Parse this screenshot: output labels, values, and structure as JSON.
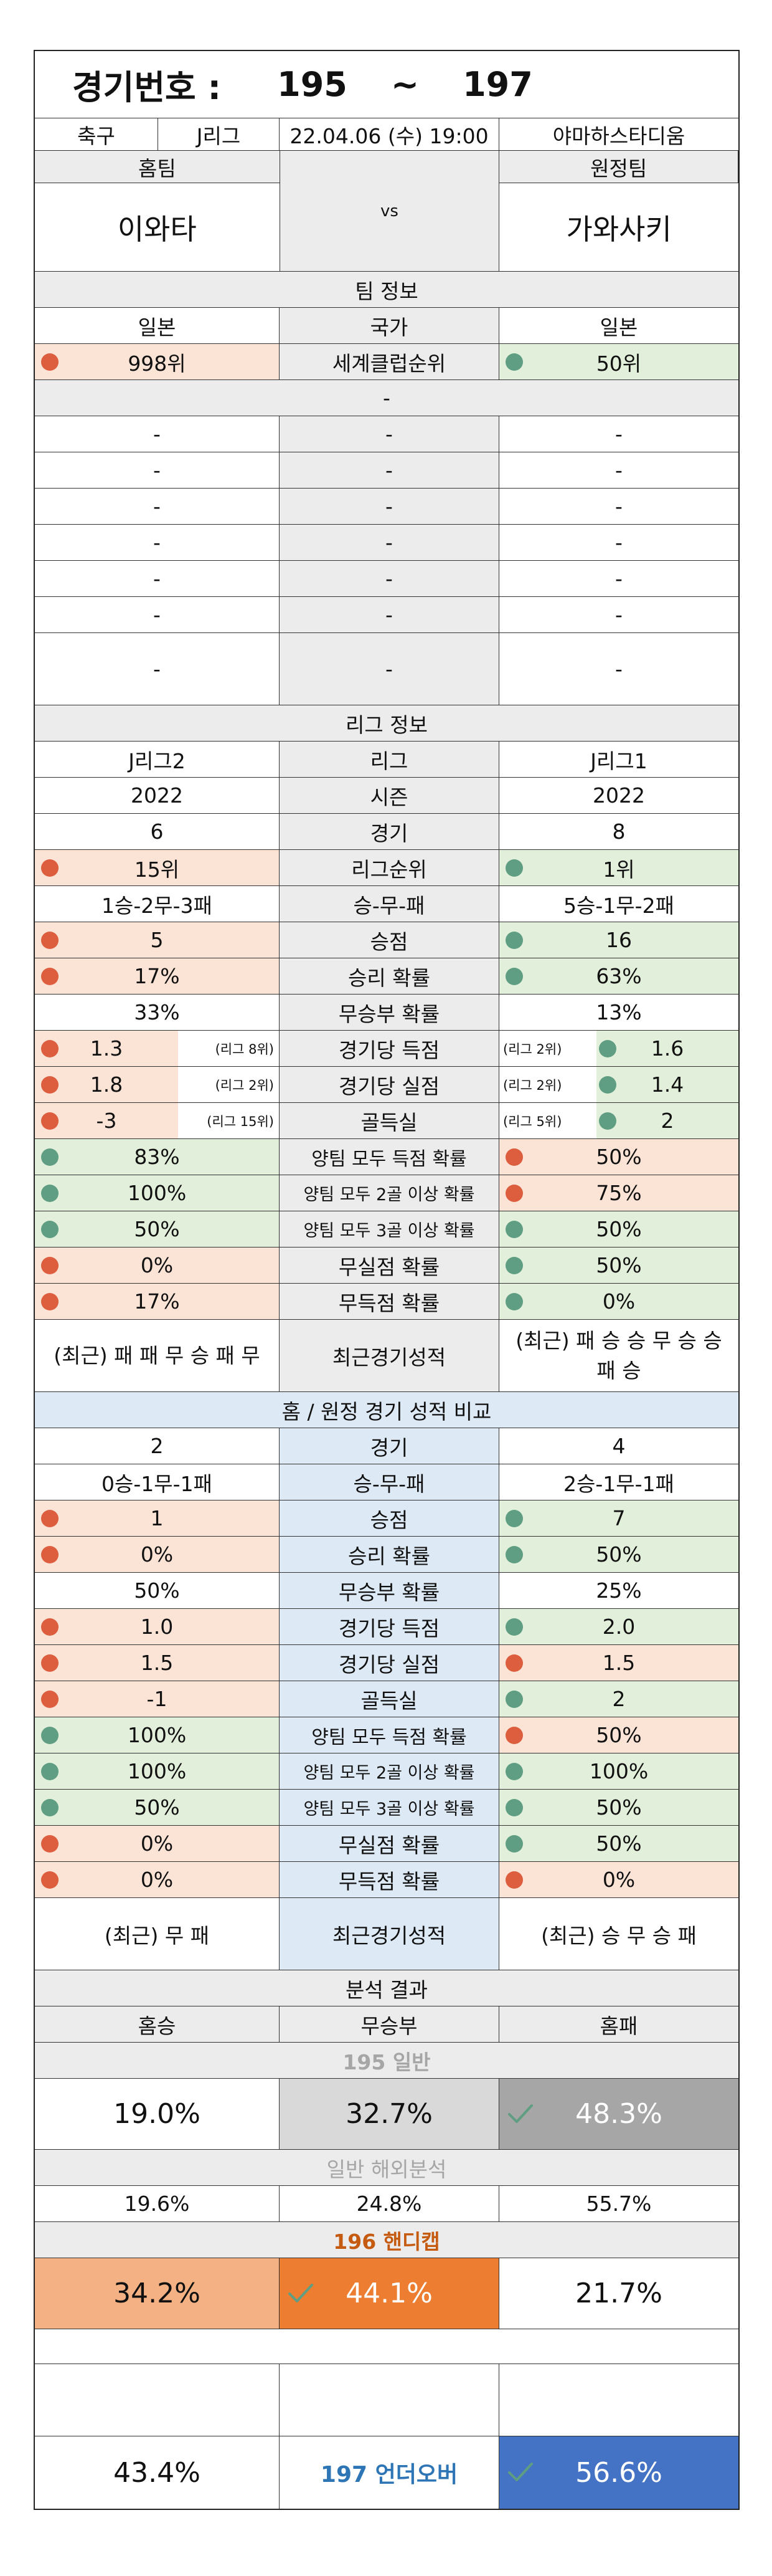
{
  "header": {
    "label": "경기번호 :",
    "from": "195",
    "tilde": "~",
    "to": "197"
  },
  "match": {
    "sport": "축구",
    "league": "J리그",
    "datetime": "22.04.06 (수) 19:00",
    "venue": "야마하스타디움"
  },
  "teams": {
    "home_label": "홈팀",
    "away_label": "원정팀",
    "home": "이와타",
    "away": "가와사키",
    "vs": "vs"
  },
  "team_info": {
    "title": "팀 정보",
    "country": {
      "home": "일본",
      "label": "국가",
      "away": "일본"
    },
    "world_rank": {
      "home": "998위",
      "label": "세계클럽순위",
      "away": "50위"
    },
    "sub": "-",
    "rows": [
      [
        "-",
        "-",
        "-"
      ],
      [
        "-",
        "-",
        "-"
      ],
      [
        "-",
        "-",
        "-"
      ],
      [
        "-",
        "-",
        "-"
      ],
      [
        "-",
        "-",
        "-"
      ],
      [
        "-",
        "-",
        "-"
      ],
      [
        "-",
        "-",
        "-"
      ]
    ]
  },
  "league_info": {
    "title": "리그 정보",
    "league": {
      "home": "J리그2",
      "label": "리그",
      "away": "J리그1"
    },
    "season": {
      "home": "2022",
      "label": "시즌",
      "away": "2022"
    },
    "games": {
      "home": "6",
      "label": "경기",
      "away": "8"
    },
    "rank": {
      "home": "15위",
      "label": "리그순위",
      "away": "1위"
    },
    "record": {
      "home": "1승-2무-3패",
      "label": "승-무-패",
      "away": "5승-1무-2패"
    },
    "points": {
      "home": "5",
      "label": "승점",
      "away": "16"
    },
    "win_prob": {
      "home": "17%",
      "label": "승리 확률",
      "away": "63%"
    },
    "draw_prob": {
      "home": "33%",
      "label": "무승부 확률",
      "away": "13%"
    },
    "goals_for": {
      "home": "1.3",
      "home_rank": "(리그 8위)",
      "label": "경기당 득점",
      "away_rank": "(리그 2위)",
      "away": "1.6"
    },
    "goals_against": {
      "home": "1.8",
      "home_rank": "(리그 2위)",
      "label": "경기당 실점",
      "away_rank": "(리그 2위)",
      "away": "1.4"
    },
    "goal_diff": {
      "home": "-3",
      "home_rank": "(리그 15위)",
      "label": "골득실",
      "away_rank": "(리그 5위)",
      "away": "2"
    },
    "btts": {
      "home": "83%",
      "label": "양팀 모두 득점 확률",
      "away": "50%"
    },
    "btts2": {
      "home": "100%",
      "label": "양팀 모두 2골 이상 확률",
      "away": "75%"
    },
    "btts3": {
      "home": "50%",
      "label": "양팀 모두 3골 이상 확률",
      "away": "50%"
    },
    "clean": {
      "home": "0%",
      "label": "무실점 확률",
      "away": "50%"
    },
    "noscore": {
      "home": "17%",
      "label": "무득점 확률",
      "away": "0%"
    },
    "recent": {
      "home": "(최근) 패 패 무 승 패 무",
      "label": "최근경기성적",
      "away": "(최근) 패 승 승 무 승 승 패 승"
    }
  },
  "home_away": {
    "title": "홈 / 원정 경기 성적 비교",
    "games": {
      "home": "2",
      "label": "경기",
      "away": "4"
    },
    "record": {
      "home": "0승-1무-1패",
      "label": "승-무-패",
      "away": "2승-1무-1패"
    },
    "points": {
      "home": "1",
      "label": "승점",
      "away": "7"
    },
    "win_prob": {
      "home": "0%",
      "label": "승리 확률",
      "away": "50%"
    },
    "draw_prob": {
      "home": "50%",
      "label": "무승부 확률",
      "away": "25%"
    },
    "goals_for": {
      "home": "1.0",
      "label": "경기당 득점",
      "away": "2.0"
    },
    "goals_against": {
      "home": "1.5",
      "label": "경기당 실점",
      "away": "1.5"
    },
    "goal_diff": {
      "home": "-1",
      "label": "골득실",
      "away": "2"
    },
    "btts": {
      "home": "100%",
      "label": "양팀 모두 득점 확률",
      "away": "50%"
    },
    "btts2": {
      "home": "100%",
      "label": "양팀 모두 2골 이상 확률",
      "away": "100%"
    },
    "btts3": {
      "home": "50%",
      "label": "양팀 모두 3골 이상 확률",
      "away": "50%"
    },
    "clean": {
      "home": "0%",
      "label": "무실점 확률",
      "away": "50%"
    },
    "noscore": {
      "home": "0%",
      "label": "무득점 확률",
      "away": "0%"
    },
    "recent": {
      "home": "(최근) 무 패",
      "label": "최근경기성적",
      "away": "(최근) 승 무 승 패"
    }
  },
  "analysis": {
    "title": "분석 결과",
    "cols": {
      "home": "홈승",
      "draw": "무승부",
      "away": "홈패"
    },
    "general_label": "195 일반",
    "general": {
      "home": "19.0%",
      "draw": "32.7%",
      "away": "48.3%"
    },
    "overseas_label": "일반 해외분석",
    "overseas": {
      "home": "19.6%",
      "draw": "24.8%",
      "away": "55.7%"
    },
    "handicap_label": "196 핸디캡",
    "handicap": {
      "home": "34.2%",
      "draw": "44.1%",
      "away": "21.7%"
    },
    "underover_label": "197 언더오버",
    "underover": {
      "under": "43.4%",
      "over": "56.6%"
    }
  },
  "colors": {
    "red_dot": "#dc5e3e",
    "green_dot": "#5f9e82",
    "peach": "#fbe3d6",
    "green": "#e2efda",
    "blue": "#dde9f5",
    "orange": "#ed7d31",
    "light_orange": "#f4b183",
    "dark_gray": "#a6a6a6",
    "light_gray": "#d9d9d9",
    "blue_cell": "#4472c4",
    "handicap_label": "#c55a11",
    "underover_label": "#2e75b6"
  }
}
